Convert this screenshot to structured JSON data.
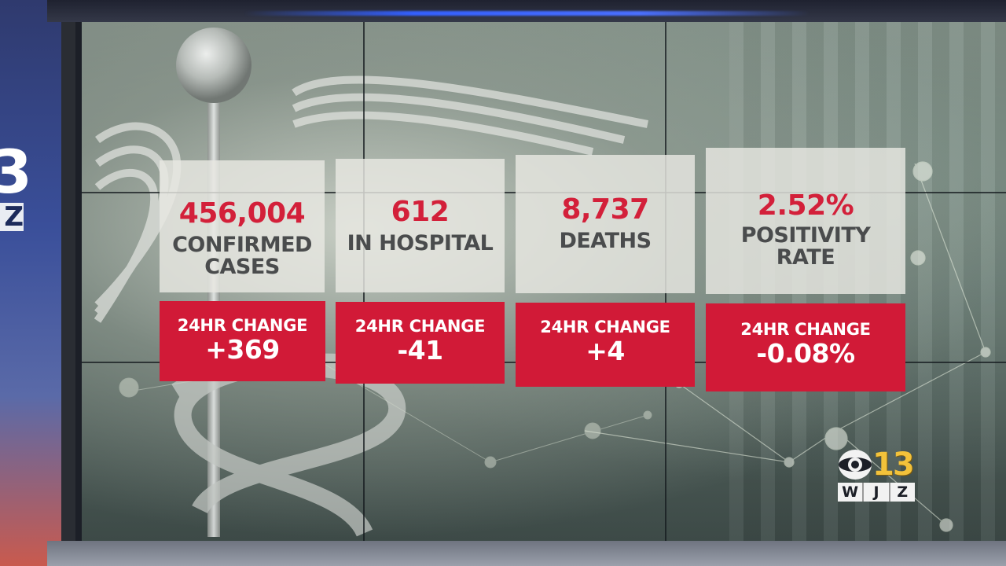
{
  "stats": [
    {
      "value": "456,004",
      "label_lines": [
        "CONFIRMED",
        "CASES"
      ],
      "change_label": "24HR CHANGE",
      "change_value": "+369"
    },
    {
      "value": "612",
      "label_lines": [
        "IN HOSPITAL"
      ],
      "change_label": "24HR CHANGE",
      "change_value": "-41"
    },
    {
      "value": "8,737",
      "label_lines": [
        "DEATHS"
      ],
      "change_label": "24HR CHANGE",
      "change_value": "+4"
    },
    {
      "value": "2.52%",
      "label_lines": [
        "POSITIVITY",
        "RATE"
      ],
      "change_label": "24HR CHANGE",
      "change_value": "-0.08%"
    }
  ],
  "logo": {
    "number": "13",
    "call_letters": [
      "W",
      "J",
      "Z"
    ]
  },
  "left_panel": {
    "big": "3",
    "small": "Z"
  },
  "colors": {
    "accent_red": "#d11a37",
    "value_red": "#d3203a",
    "label_gray": "#4a4c4d"
  },
  "icons": [
    "caduceus-icon",
    "cbs-eye-icon"
  ]
}
